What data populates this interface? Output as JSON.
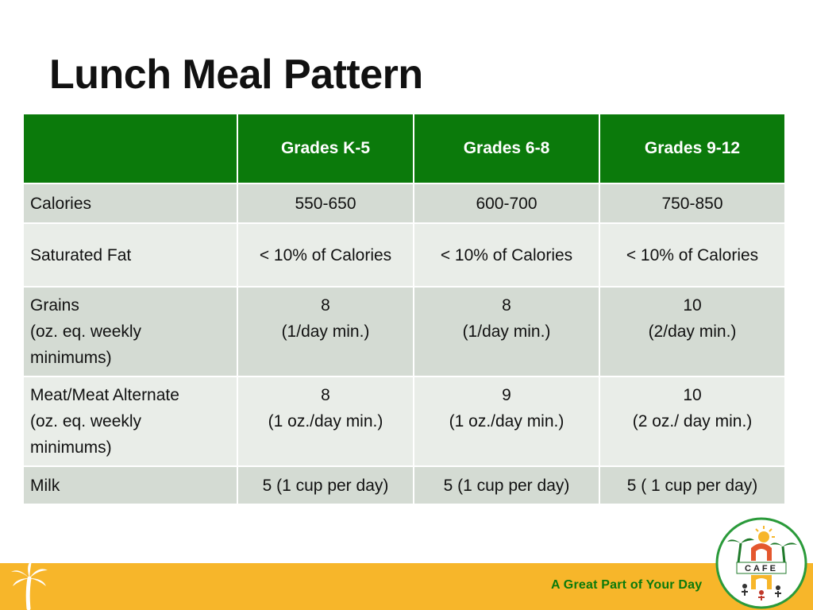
{
  "slide": {
    "title": "Lunch Meal Pattern",
    "tagline": "A Great Part of Your Day"
  },
  "logo": {
    "text": "CAFE"
  },
  "table": {
    "headers": [
      "",
      "Grades K-5",
      "Grades 6-8",
      "Grades 9-12"
    ],
    "rows": [
      {
        "label": [
          "Calories"
        ],
        "cells": [
          [
            "550-650"
          ],
          [
            "600-700"
          ],
          [
            "750-850"
          ]
        ]
      },
      {
        "label": [
          "Saturated Fat"
        ],
        "cells": [
          [
            "< 10% of Calories"
          ],
          [
            "< 10% of Calories"
          ],
          [
            "< 10% of Calories"
          ]
        ]
      },
      {
        "label": [
          "Grains",
          "(oz. eq. weekly",
          "minimums)"
        ],
        "cells": [
          [
            "8",
            "(1/day min.)"
          ],
          [
            "8",
            "(1/day min.)"
          ],
          [
            "10",
            "(2/day min.)"
          ]
        ]
      },
      {
        "label": [
          "Meat/Meat Alternate",
          "(oz. eq. weekly",
          "minimums)"
        ],
        "cells": [
          [
            "8",
            "(1 oz./day min.)"
          ],
          [
            "9",
            "(1 oz./day min.)"
          ],
          [
            "10",
            "(2 oz./ day min.)"
          ]
        ]
      },
      {
        "label": [
          "Milk"
        ],
        "cells": [
          [
            "5 (1 cup per day)"
          ],
          [
            "5 (1 cup per day)"
          ],
          [
            "5 ( 1 cup per day)"
          ]
        ]
      }
    ]
  },
  "colors": {
    "header_green": "#0b7a0b",
    "row_dark": "#d4dbd3",
    "row_light": "#e9ede8",
    "footer_orange": "#f7b62a"
  },
  "icons": [
    "palm-tree-icon",
    "cafe-logo-icon"
  ]
}
